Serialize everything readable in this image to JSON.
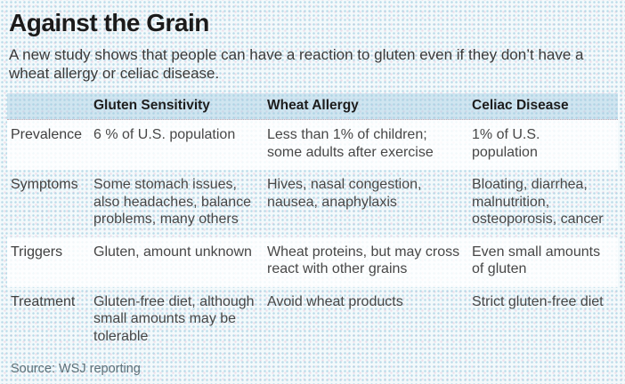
{
  "header": {
    "title": "Against the Grain",
    "subtitle": "A new study shows that people can have a reaction to gluten even if they don’t have a wheat allergy or celiac disease."
  },
  "table": {
    "columns": [
      "Gluten Sensitivity",
      "Wheat Allergy",
      "Celiac Disease"
    ],
    "rows": [
      {
        "label": "Prevalence",
        "cells": [
          "6 % of U.S. population",
          "Less than 1% of children; some adults after exercise",
          "1% of U.S. population"
        ]
      },
      {
        "label": "Symptoms",
        "cells": [
          "Some stomach issues, also headaches, balance problems, many others",
          "Hives, nasal congestion, nausea, anaphylaxis",
          "Bloating, diarrhea, malnutrition, osteoporosis, cancer"
        ]
      },
      {
        "label": "Triggers",
        "cells": [
          "Gluten, amount unknown",
          "Wheat proteins, but may cross react with other grains",
          "Even small amounts of gluten"
        ]
      },
      {
        "label": "Treatment",
        "cells": [
          "Gluten-free diet, al­though small amounts may be tolerable",
          "Avoid wheat products",
          "Strict gluten-free diet"
        ]
      }
    ]
  },
  "footer": {
    "source": "Source: WSJ reporting"
  },
  "colors": {
    "page_background": "#edf4f6",
    "header_band": "#d8e9f0",
    "light_row": "#fbfdfd",
    "title_text": "#1b1b1b",
    "body_text": "#474747",
    "source_text": "#5e7078"
  },
  "chart_data": {
    "type": "table",
    "title": "Against the Grain",
    "subtitle": "A new study shows that people can have a reaction to gluten even if they don’t have a wheat allergy or celiac disease.",
    "columns": [
      "",
      "Gluten Sensitivity",
      "Wheat Allergy",
      "Celiac Disease"
    ],
    "rows": [
      [
        "Prevalence",
        "6 % of U.S. population",
        "Less than 1% of children; some adults after exercise",
        "1% of U.S. population"
      ],
      [
        "Symptoms",
        "Some stomach issues, also headaches, balance problems, many others",
        "Hives, nasal congestion, nausea, anaphylaxis",
        "Bloating, diarrhea, malnutrition, osteoporosis, cancer"
      ],
      [
        "Triggers",
        "Gluten, amount unknown",
        "Wheat proteins, but may cross react with other grains",
        "Even small amounts of gluten"
      ],
      [
        "Treatment",
        "Gluten-free diet, although small amounts may be tolerable",
        "Avoid wheat products",
        "Strict gluten-free diet"
      ]
    ],
    "source": "Source: WSJ reporting",
    "layout": {
      "striped_rows": [
        "Prevalence",
        "Triggers"
      ],
      "header_band": true
    }
  }
}
